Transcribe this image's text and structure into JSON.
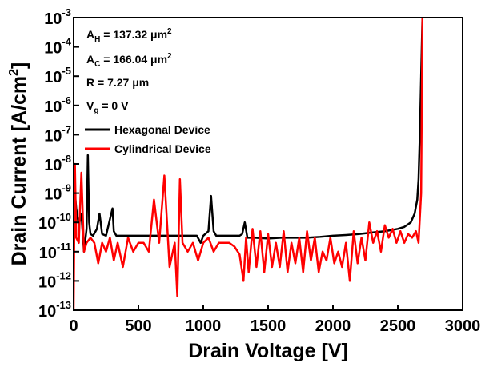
{
  "chart_data": {
    "type": "line",
    "xlabel": "Drain Voltage [V]",
    "ylabel": {
      "text": "Drain Current [A/cm",
      "sup": "2",
      "end": "]"
    },
    "xlim": [
      0,
      3000
    ],
    "xticks": [
      0,
      500,
      1000,
      1500,
      2000,
      2500,
      3000
    ],
    "ylim": [
      1e-13,
      0.001
    ],
    "yscale": "log",
    "yticks": [
      {
        "value": 1e-13,
        "label": "10",
        "sup": "-13"
      },
      {
        "value": 1e-12,
        "label": "10",
        "sup": "-12"
      },
      {
        "value": 1e-11,
        "label": "10",
        "sup": "-11"
      },
      {
        "value": 1e-10,
        "label": "10",
        "sup": "-10"
      },
      {
        "value": 1e-09,
        "label": "10",
        "sup": "-9"
      },
      {
        "value": 1e-08,
        "label": "10",
        "sup": "-8"
      },
      {
        "value": 1e-07,
        "label": "10",
        "sup": "-7"
      },
      {
        "value": 1e-06,
        "label": "10",
        "sup": "-6"
      },
      {
        "value": 1e-05,
        "label": "10",
        "sup": "-5"
      },
      {
        "value": 0.0001,
        "label": "10",
        "sup": "-4"
      },
      {
        "value": 0.001,
        "label": "10",
        "sup": "-3"
      }
    ],
    "legend": "upper left",
    "annotations": [
      {
        "main": "A",
        "sub": "H",
        "rest": " = 137.32 μm",
        "sup": "2"
      },
      {
        "main": "A",
        "sub": "C",
        "rest": " = 166.04 μm",
        "sup": "2"
      },
      {
        "main": "R = 7.27 μm"
      },
      {
        "main": "V",
        "sub": "g",
        "rest": " = 0 V"
      }
    ],
    "series": [
      {
        "name": "Hexagonal Device",
        "color": "#000000",
        "x": [
          0,
          10,
          20,
          40,
          60,
          80,
          100,
          110,
          120,
          130,
          150,
          180,
          200,
          220,
          250,
          300,
          310,
          330,
          400,
          500,
          600,
          700,
          800,
          900,
          950,
          980,
          1000,
          1040,
          1060,
          1080,
          1100,
          1200,
          1280,
          1300,
          1320,
          1340,
          1400,
          1500,
          1600,
          1700,
          1800,
          1900,
          2000,
          2100,
          2200,
          2300,
          2400,
          2500,
          2550,
          2600,
          2630,
          2650,
          2660,
          2670,
          2680,
          2690
        ],
        "values": [
          2e-10,
          1e-09,
          3e-10,
          8e-11,
          2e-10,
          1e-11,
          6e-11,
          2e-08,
          1e-10,
          4e-11,
          3.5e-11,
          6e-11,
          2e-10,
          4e-11,
          3.5e-11,
          3e-10,
          5e-11,
          3.5e-11,
          3.5e-11,
          3.5e-11,
          3.5e-11,
          3.5e-11,
          3.5e-11,
          3.5e-11,
          3.5e-11,
          2e-11,
          3.5e-11,
          5e-11,
          8e-10,
          5e-11,
          3.5e-11,
          3.5e-11,
          3.5e-11,
          4e-11,
          1e-10,
          3e-11,
          3e-11,
          2.8e-11,
          3e-11,
          3e-11,
          3e-11,
          3.2e-11,
          3.5e-11,
          3.7e-11,
          4e-11,
          4.5e-11,
          5e-11,
          6e-11,
          7e-11,
          1e-10,
          2e-10,
          6e-10,
          3e-09,
          1e-07,
          1e-05,
          0.001
        ]
      },
      {
        "name": "Cylindrical Device",
        "color": "#ff0000",
        "x": [
          0,
          10,
          20,
          40,
          60,
          80,
          100,
          130,
          160,
          190,
          220,
          250,
          280,
          310,
          340,
          380,
          420,
          460,
          500,
          540,
          580,
          620,
          660,
          700,
          740,
          780,
          800,
          820,
          840,
          880,
          920,
          960,
          1000,
          1040,
          1080,
          1120,
          1160,
          1200,
          1240,
          1280,
          1310,
          1330,
          1350,
          1380,
          1410,
          1440,
          1470,
          1500,
          1530,
          1560,
          1590,
          1620,
          1650,
          1680,
          1710,
          1740,
          1770,
          1800,
          1830,
          1860,
          1890,
          1920,
          1950,
          1980,
          2010,
          2040,
          2070,
          2100,
          2130,
          2160,
          2190,
          2220,
          2250,
          2280,
          2310,
          2340,
          2370,
          2400,
          2430,
          2460,
          2490,
          2520,
          2550,
          2580,
          2610,
          2640,
          2660,
          2680,
          2690
        ],
        "values": [
          1e-13,
          1e-08,
          3e-11,
          2e-11,
          5e-09,
          1e-11,
          2e-11,
          3e-11,
          2e-11,
          4e-12,
          2e-11,
          1e-11,
          3e-11,
          5e-12,
          2e-11,
          3e-12,
          3e-11,
          1e-11,
          2e-11,
          2e-11,
          1e-11,
          6e-10,
          2e-11,
          4e-09,
          3e-12,
          2e-11,
          3e-13,
          3e-09,
          2e-11,
          1e-11,
          2e-11,
          5e-12,
          2e-11,
          3e-11,
          1e-11,
          2e-11,
          2e-11,
          2e-11,
          1.5e-11,
          8e-12,
          1e-12,
          3e-11,
          2e-12,
          6e-11,
          3e-12,
          5e-11,
          2e-12,
          4e-11,
          3e-12,
          2e-11,
          3e-12,
          5e-11,
          2e-12,
          2e-11,
          4e-12,
          3e-11,
          2e-12,
          5e-11,
          5e-12,
          3e-11,
          2e-12,
          1e-11,
          5e-12,
          3e-11,
          4e-12,
          1e-11,
          3e-12,
          2e-11,
          1e-12,
          5e-11,
          4e-12,
          3e-11,
          5e-12,
          1e-10,
          2e-11,
          5e-11,
          1e-11,
          8e-11,
          3e-11,
          6e-11,
          2e-11,
          5e-11,
          2e-11,
          4e-11,
          3e-11,
          5e-11,
          2e-11,
          1e-09,
          0.001
        ]
      }
    ]
  }
}
